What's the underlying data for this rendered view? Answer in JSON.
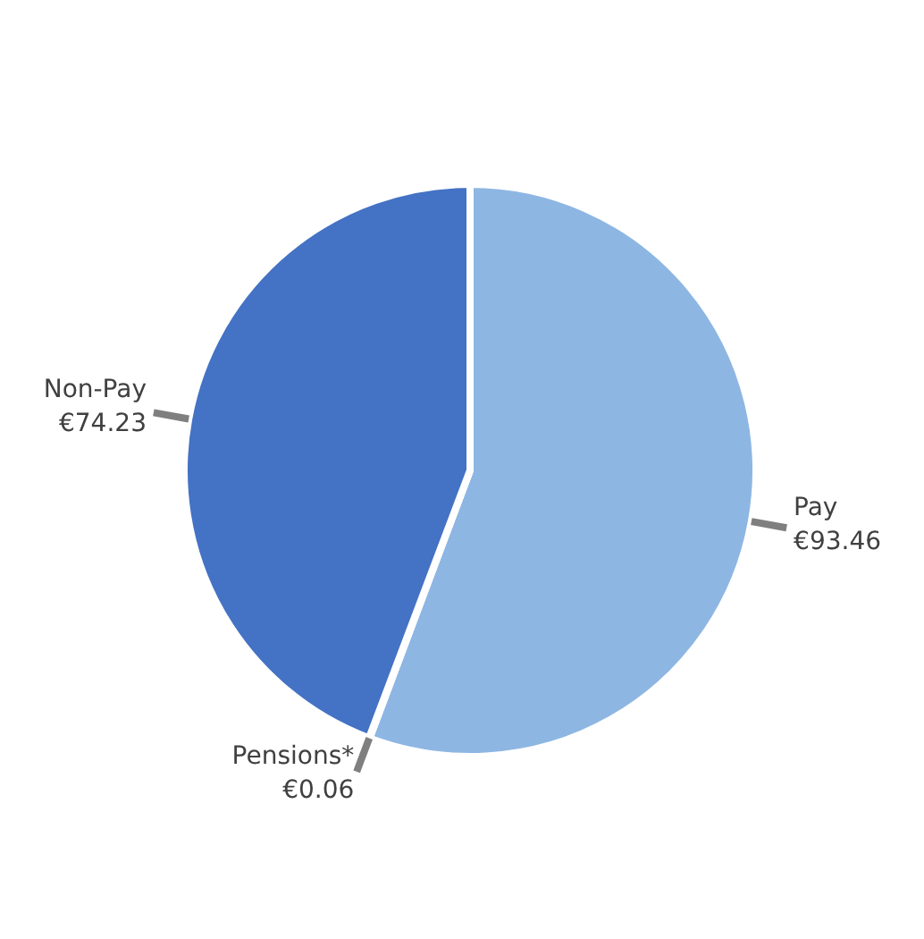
{
  "chart_data": {
    "type": "pie",
    "categories": [
      "Pay",
      "Pensions*",
      "Non-Pay"
    ],
    "values": [
      93.46,
      0.06,
      74.23
    ],
    "value_labels": [
      "€93.46",
      "€0.06",
      "€74.23"
    ],
    "colors": [
      "#8db6e3",
      "#a5a5a5",
      "#4472c4"
    ]
  }
}
